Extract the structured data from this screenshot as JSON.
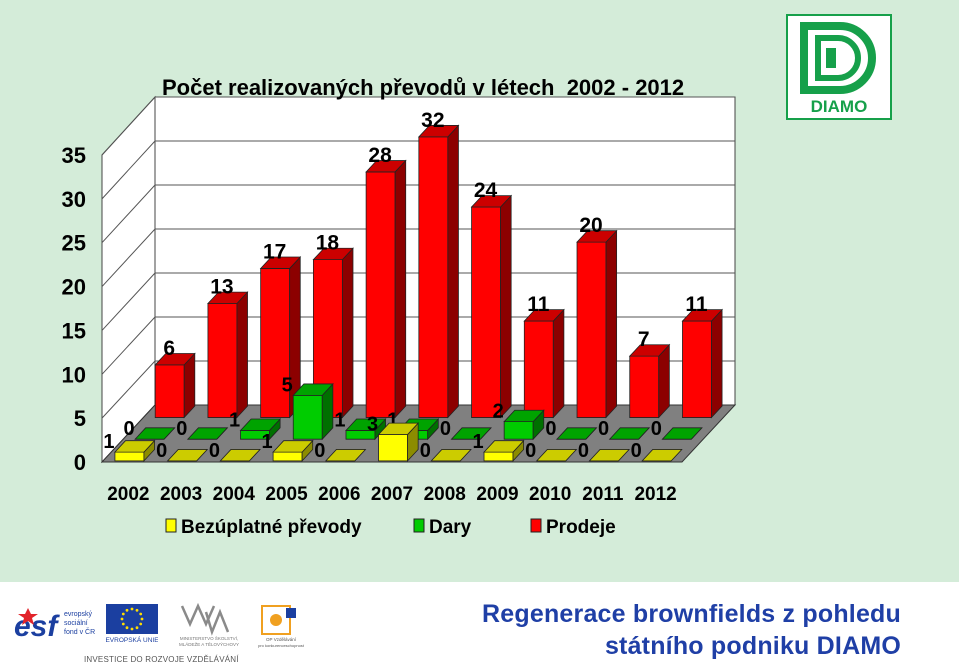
{
  "chart_data": {
    "type": "bar",
    "title": "Počet realizovaných převodů v létech  2002 - 2012",
    "categories": [
      "2002",
      "2003",
      "2004",
      "2005",
      "2006",
      "2007",
      "2008",
      "2009",
      "2010",
      "2011",
      "2012"
    ],
    "series": [
      {
        "name": "Bezúplatné převody",
        "color": "#ffff00",
        "values": [
          1,
          0,
          0,
          1,
          0,
          3,
          0,
          1,
          0,
          0,
          0
        ]
      },
      {
        "name": "Dary",
        "color": "#00cc00",
        "values": [
          0,
          0,
          1,
          5,
          1,
          1,
          0,
          2,
          0,
          0,
          0
        ]
      },
      {
        "name": "Prodeje",
        "color": "#ff0000",
        "values": [
          6,
          13,
          17,
          18,
          28,
          32,
          24,
          11,
          20,
          7,
          11
        ]
      }
    ],
    "ylim": [
      0,
      35
    ],
    "yticks": [
      0,
      5,
      10,
      15,
      20,
      25,
      30,
      35
    ],
    "grid": true,
    "legend": "bottom",
    "xlabel": "",
    "ylabel": ""
  },
  "footer": {
    "title_line1": "Regenerace brownfields z pohledu",
    "title_line2": "státního podniku DIAMO",
    "invest_text": "INVESTICE DO ROZVOJE VZDĚLÁVÁNÍ",
    "title_color": "#1f3fa6"
  },
  "logos": {
    "diamo": "DIAMO",
    "esf": "esf",
    "esf_text": [
      "evropský",
      "sociální",
      "fond v ČR"
    ],
    "eu_text": "EVROPSKÁ UNIE",
    "msmt_text": [
      "MINISTERSTVO ŠKOLSTVÍ,",
      "MLÁDEŽE A TĚLOVÝCHOVY"
    ],
    "op_text": [
      "OP Vzdělávání",
      "pro konkurenceschopnost"
    ]
  },
  "colors": {
    "background": "#d4ecd9",
    "diamo_green": "#16a04a",
    "eu_blue": "#1b3fa0"
  }
}
